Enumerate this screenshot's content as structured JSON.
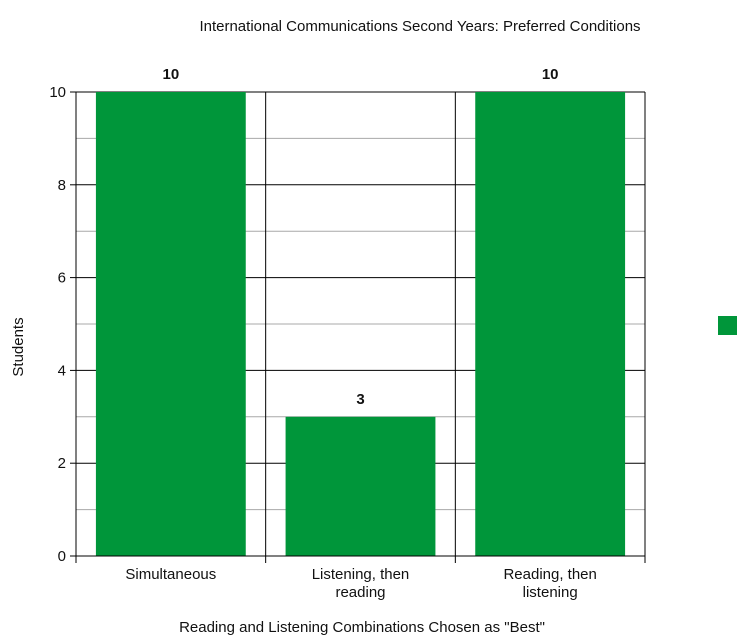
{
  "chart_data": {
    "type": "bar",
    "title": "International Communications Second Years: Preferred Conditions",
    "xlabel": "Reading and Listening Combinations Chosen as \"Best\"",
    "ylabel": "Students",
    "categories": [
      [
        "Simultaneous"
      ],
      [
        "Listening, then",
        "reading"
      ],
      [
        "Reading, then",
        "listening"
      ]
    ],
    "values": [
      10,
      3,
      10
    ],
    "data_labels": [
      "10",
      "3",
      "10"
    ],
    "ylim": [
      0,
      10
    ],
    "yticks": [
      0,
      2,
      4,
      6,
      8,
      10
    ],
    "ytick_labels": [
      "0",
      "2",
      "4",
      "6",
      "8",
      "10"
    ],
    "grid": true,
    "bar_color": "#00963a",
    "legend": {
      "placement": "right",
      "swatch_color": "#00963a",
      "label": ""
    }
  }
}
